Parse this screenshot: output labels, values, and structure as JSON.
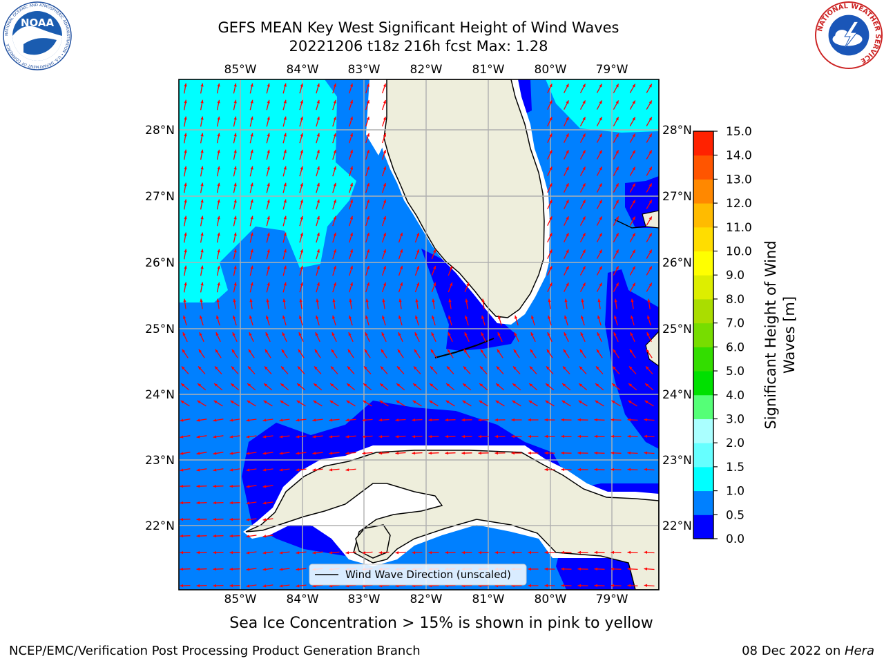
{
  "title_line1": "GEFS MEAN Key West Significant Height of Wind Waves",
  "title_line2": "20221206 t18z 216h fcst   Max: 1.28",
  "lon_labels": [
    "85°W",
    "84°W",
    "83°W",
    "82°W",
    "81°W",
    "80°W",
    "79°W"
  ],
  "lat_labels": [
    "28°N",
    "27°N",
    "26°N",
    "25°N",
    "24°N",
    "23°N",
    "22°N"
  ],
  "legend_label": "Wind Wave Direction (unscaled)",
  "colorbar": {
    "label_line1": "Significant Height of Wind",
    "label_line2": "Waves [m]",
    "ticks": [
      "0.0",
      "0.5",
      "1.0",
      "1.5",
      "2.0",
      "3.0",
      "4.0",
      "5.0",
      "6.0",
      "7.0",
      "8.0",
      "9.0",
      "10.0",
      "11.0",
      "12.0",
      "13.0",
      "14.0",
      "15.0"
    ],
    "colors": [
      "#0000ff",
      "#0080ff",
      "#00ffff",
      "#66ffff",
      "#aaffff",
      "#55ff77",
      "#00e000",
      "#33dd00",
      "#77dd00",
      "#aadd00",
      "#ddee00",
      "#ffff00",
      "#ffdd00",
      "#ffbb00",
      "#ff8800",
      "#ff5500",
      "#ff2200"
    ]
  },
  "footnote": "Sea Ice Concentration > 15% is shown in pink to yellow",
  "credit": "NCEP/EMC/Verification Post Processing Product Generation Branch",
  "date_prefix": "08 Dec 2022 on ",
  "date_host": "Hera",
  "logos": {
    "noaa_text": "NOAA",
    "noaa_ring": "NATIONAL OCEANIC AND ATMOSPHERIC ADMINISTRATION • U.S. DEPARTMENT OF COMMERCE",
    "nws_ring": "NATIONAL WEATHER SERVICE"
  },
  "colors": {
    "land": "#eeeedc",
    "sea_low": "#0000ff",
    "sea_mid": "#0080ff",
    "sea_high": "#00ffff",
    "arrow": "#ff0000",
    "grid": "#b0b0b0"
  }
}
